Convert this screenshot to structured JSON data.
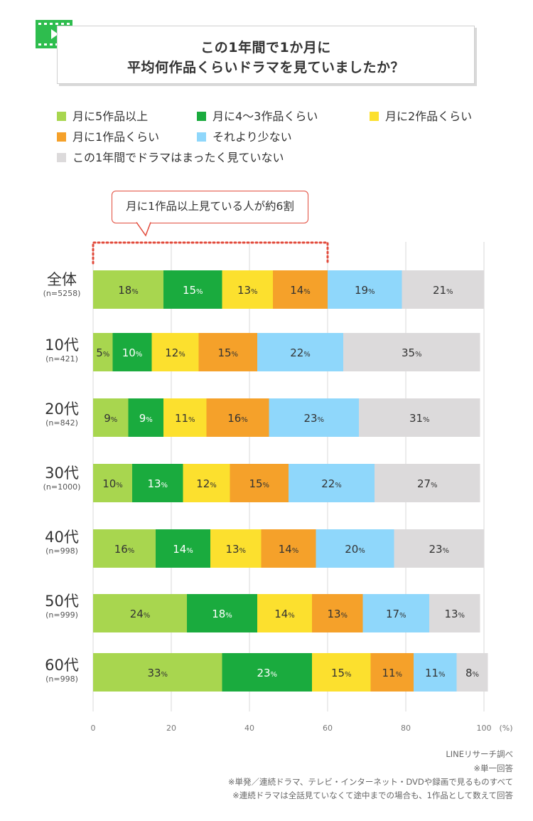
{
  "title": {
    "line1": "この1年間で1か月に",
    "line2": "平均何作品くらいドラマを見ていましたか？"
  },
  "icons": {
    "header": "play-film-icon"
  },
  "legend": [
    {
      "label": "月に5作品以上",
      "color": "#a8d64f"
    },
    {
      "label": "月に4～3作品くらい",
      "color": "#1aab3e"
    },
    {
      "label": "月に2作品くらい",
      "color": "#fce02e"
    },
    {
      "label": "月に1作品くらい",
      "color": "#f5a12a"
    },
    {
      "label": "それより少ない",
      "color": "#8fd7fb"
    },
    {
      "label": "この1年間でドラマはまったく見ていない",
      "color": "#dcdadb"
    }
  ],
  "callout": "月に1作品以上見ている人が約6割",
  "chart_data": {
    "type": "bar",
    "orientation": "horizontal",
    "stacked": true,
    "categories": [
      "全体",
      "10代",
      "20代",
      "30代",
      "40代",
      "50代",
      "60代"
    ],
    "sample_sizes": [
      "(n=5258)",
      "(n=421)",
      "(n=842)",
      "(n=1000)",
      "(n=998)",
      "(n=999)",
      "(n=998)"
    ],
    "series": [
      {
        "name": "月に5作品以上",
        "values": [
          18,
          5,
          9,
          10,
          16,
          24,
          33
        ]
      },
      {
        "name": "月に4～3作品くらい",
        "values": [
          15,
          10,
          9,
          13,
          14,
          18,
          23
        ]
      },
      {
        "name": "月に2作品くらい",
        "values": [
          13,
          12,
          11,
          12,
          13,
          14,
          15
        ]
      },
      {
        "name": "月に1作品くらい",
        "values": [
          14,
          15,
          16,
          15,
          14,
          13,
          11
        ]
      },
      {
        "name": "それより少ない",
        "values": [
          19,
          22,
          23,
          22,
          20,
          17,
          11
        ]
      },
      {
        "name": "この1年間でドラマはまったく見ていない",
        "values": [
          21,
          35,
          31,
          27,
          23,
          13,
          8
        ]
      }
    ],
    "xlim": [
      0,
      100
    ],
    "xticks": [
      "0",
      "20",
      "40",
      "60",
      "80",
      "100"
    ],
    "xunit": "(%)",
    "grid": true,
    "highlight_range": [
      0,
      60
    ],
    "value_suffix": "%"
  },
  "footnotes": [
    "LINEリサーチ調べ",
    "※単一回答",
    "※単発／連続ドラマ、テレビ・インターネット・DVDや録画で見るものすべて",
    "※連続ドラマは全話見ていなくて途中までの場合も、1作品として数えて回答"
  ]
}
